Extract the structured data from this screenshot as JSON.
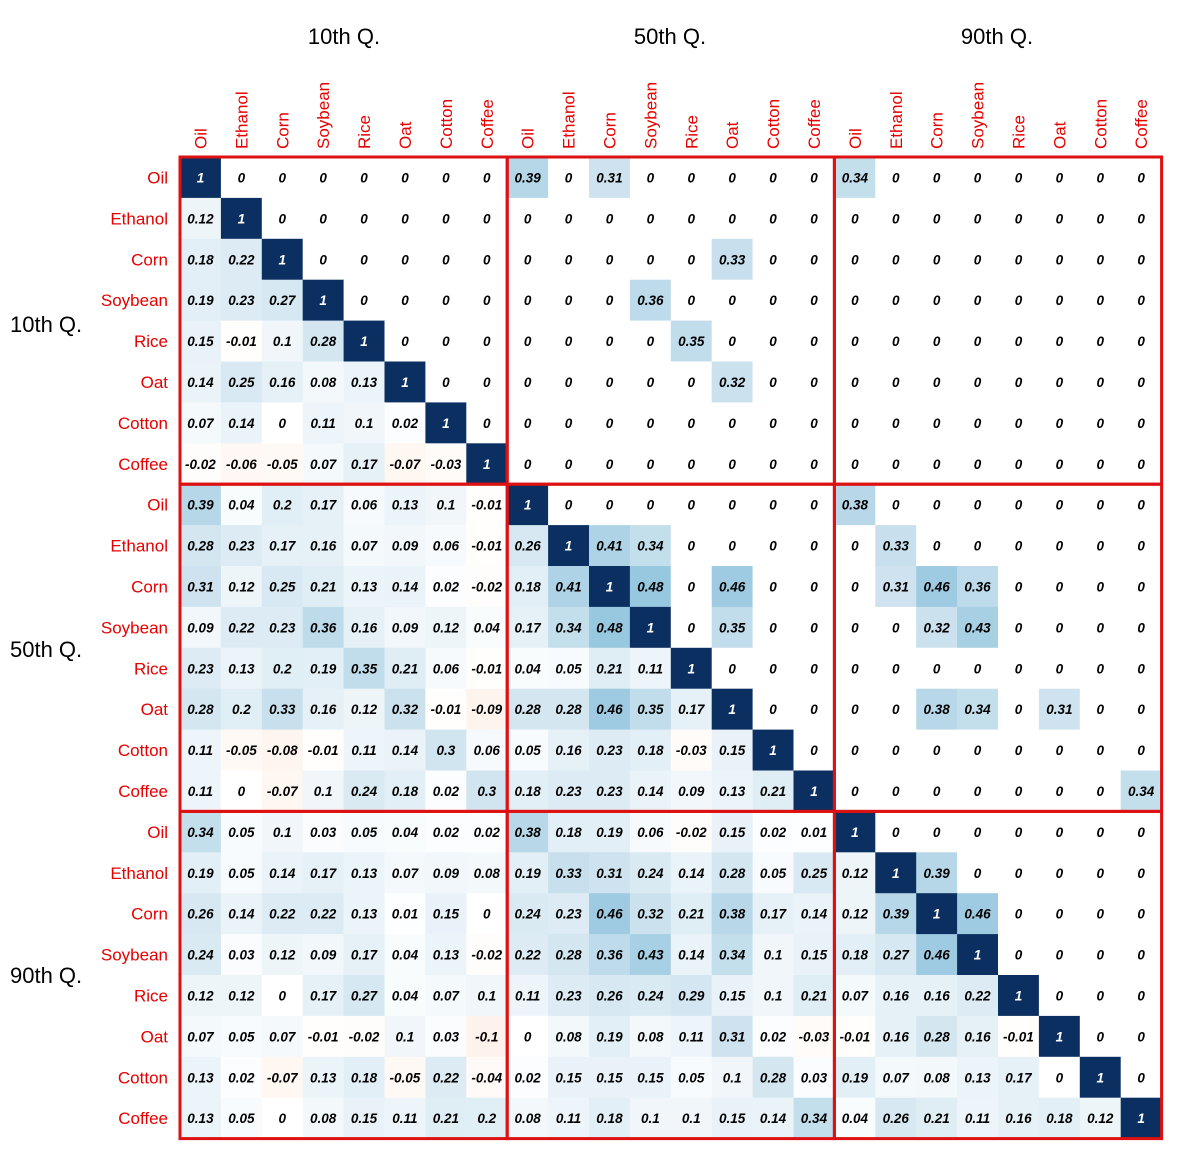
{
  "chart_data": {
    "type": "heatmap",
    "group_labels": [
      "10th Q.",
      "50th Q.",
      "90th Q."
    ],
    "variables": [
      "Oil",
      "Ethanol",
      "Corn",
      "Soybean",
      "Rice",
      "Oat",
      "Cotton",
      "Coffee"
    ],
    "column_labels": [
      "Oil",
      "Ethanol",
      "Corn",
      "Soybean",
      "Rice",
      "Oat",
      "Cotton",
      "Coffee",
      "Oil",
      "Ethanol",
      "Corn",
      "Soybean",
      "Rice",
      "Oat",
      "Cotton",
      "Coffee",
      "Oil",
      "Ethanol",
      "Corn",
      "Soybean",
      "Rice",
      "Oat",
      "Cotton",
      "Coffee"
    ],
    "row_labels": [
      "Oil",
      "Ethanol",
      "Corn",
      "Soybean",
      "Rice",
      "Oat",
      "Cotton",
      "Coffee",
      "Oil",
      "Ethanol",
      "Corn",
      "Soybean",
      "Rice",
      "Oat",
      "Cotton",
      "Coffee",
      "Oil",
      "Ethanol",
      "Corn",
      "Soybean",
      "Rice",
      "Oat",
      "Cotton",
      "Coffee"
    ],
    "value_range": [
      -1,
      1
    ],
    "colors": {
      "positive_max": "#0b2f61",
      "neutral": "#ffffff",
      "negative_max": "#b2182b",
      "tick_label": "#e60000",
      "block_border": "#dd1111"
    },
    "matrix": [
      [
        1,
        0,
        0,
        0,
        0,
        0,
        0,
        0,
        0.39,
        0,
        0.31,
        0,
        0,
        0,
        0,
        0,
        0.34,
        0,
        0,
        0,
        0,
        0,
        0,
        0
      ],
      [
        0.12,
        1,
        0,
        0,
        0,
        0,
        0,
        0,
        0,
        0,
        0,
        0,
        0,
        0,
        0,
        0,
        0,
        0,
        0,
        0,
        0,
        0,
        0,
        0
      ],
      [
        0.18,
        0.22,
        1,
        0,
        0,
        0,
        0,
        0,
        0,
        0,
        0,
        0,
        0,
        0.33,
        0,
        0,
        0,
        0,
        0,
        0,
        0,
        0,
        0,
        0
      ],
      [
        0.19,
        0.23,
        0.27,
        1,
        0,
        0,
        0,
        0,
        0,
        0,
        0,
        0.36,
        0,
        0,
        0,
        0,
        0,
        0,
        0,
        0,
        0,
        0,
        0,
        0
      ],
      [
        0.15,
        -0.01,
        0.1,
        0.28,
        1,
        0,
        0,
        0,
        0,
        0,
        0,
        0,
        0.35,
        0,
        0,
        0,
        0,
        0,
        0,
        0,
        0,
        0,
        0,
        0
      ],
      [
        0.14,
        0.25,
        0.16,
        0.08,
        0.13,
        1,
        0,
        0,
        0,
        0,
        0,
        0,
        0,
        0.32,
        0,
        0,
        0,
        0,
        0,
        0,
        0,
        0,
        0,
        0
      ],
      [
        0.07,
        0.14,
        0,
        0.11,
        0.1,
        0.02,
        1,
        0,
        0,
        0,
        0,
        0,
        0,
        0,
        0,
        0,
        0,
        0,
        0,
        0,
        0,
        0,
        0,
        0
      ],
      [
        -0.02,
        -0.06,
        -0.05,
        0.07,
        0.17,
        -0.07,
        -0.03,
        1,
        0,
        0,
        0,
        0,
        0,
        0,
        0,
        0,
        0,
        0,
        0,
        0,
        0,
        0,
        0,
        0
      ],
      [
        0.39,
        0.04,
        0.2,
        0.17,
        0.06,
        0.13,
        0.1,
        -0.01,
        1,
        0,
        0,
        0,
        0,
        0,
        0,
        0,
        0.38,
        0,
        0,
        0,
        0,
        0,
        0,
        0
      ],
      [
        0.28,
        0.23,
        0.17,
        0.16,
        0.07,
        0.09,
        0.06,
        -0.01,
        0.26,
        1,
        0.41,
        0.34,
        0,
        0,
        0,
        0,
        0,
        0.33,
        0,
        0,
        0,
        0,
        0,
        0
      ],
      [
        0.31,
        0.12,
        0.25,
        0.21,
        0.13,
        0.14,
        0.02,
        -0.02,
        0.18,
        0.41,
        1,
        0.48,
        0,
        0.46,
        0,
        0,
        0,
        0.31,
        0.46,
        0.36,
        0,
        0,
        0,
        0
      ],
      [
        0.09,
        0.22,
        0.23,
        0.36,
        0.16,
        0.09,
        0.12,
        0.04,
        0.17,
        0.34,
        0.48,
        1,
        0,
        0.35,
        0,
        0,
        0,
        0,
        0.32,
        0.43,
        0,
        0,
        0,
        0
      ],
      [
        0.23,
        0.13,
        0.2,
        0.19,
        0.35,
        0.21,
        0.06,
        -0.01,
        0.04,
        0.05,
        0.21,
        0.11,
        1,
        0,
        0,
        0,
        0,
        0,
        0,
        0,
        0,
        0,
        0,
        0
      ],
      [
        0.28,
        0.2,
        0.33,
        0.16,
        0.12,
        0.32,
        -0.01,
        -0.09,
        0.28,
        0.28,
        0.46,
        0.35,
        0.17,
        1,
        0,
        0,
        0,
        0,
        0.38,
        0.34,
        0,
        0.31,
        0,
        0
      ],
      [
        0.11,
        -0.05,
        -0.08,
        -0.01,
        0.11,
        0.14,
        0.3,
        0.06,
        0.05,
        0.16,
        0.23,
        0.18,
        -0.03,
        0.15,
        1,
        0,
        0,
        0,
        0,
        0,
        0,
        0,
        0,
        0
      ],
      [
        0.11,
        0,
        -0.07,
        0.1,
        0.24,
        0.18,
        0.02,
        0.3,
        0.18,
        0.23,
        0.23,
        0.14,
        0.09,
        0.13,
        0.21,
        1,
        0,
        0,
        0,
        0,
        0,
        0,
        0,
        0.34
      ],
      [
        0.34,
        0.05,
        0.1,
        0.03,
        0.05,
        0.04,
        0.02,
        0.02,
        0.38,
        0.18,
        0.19,
        0.06,
        -0.02,
        0.15,
        0.02,
        0.01,
        1,
        0,
        0,
        0,
        0,
        0,
        0,
        0
      ],
      [
        0.19,
        0.05,
        0.14,
        0.17,
        0.13,
        0.07,
        0.09,
        0.08,
        0.19,
        0.33,
        0.31,
        0.24,
        0.14,
        0.28,
        0.05,
        0.25,
        0.12,
        1,
        0.39,
        0,
        0,
        0,
        0,
        0
      ],
      [
        0.26,
        0.14,
        0.22,
        0.22,
        0.13,
        0.01,
        0.15,
        0,
        0.24,
        0.23,
        0.46,
        0.32,
        0.21,
        0.38,
        0.17,
        0.14,
        0.12,
        0.39,
        1,
        0.46,
        0,
        0,
        0,
        0
      ],
      [
        0.24,
        0.03,
        0.12,
        0.09,
        0.17,
        0.04,
        0.13,
        -0.02,
        0.22,
        0.28,
        0.36,
        0.43,
        0.14,
        0.34,
        0.1,
        0.15,
        0.18,
        0.27,
        0.46,
        1,
        0,
        0,
        0,
        0
      ],
      [
        0.12,
        0.12,
        0,
        0.17,
        0.27,
        0.04,
        0.07,
        0.1,
        0.11,
        0.23,
        0.26,
        0.24,
        0.29,
        0.15,
        0.1,
        0.21,
        0.07,
        0.16,
        0.16,
        0.22,
        1,
        0,
        0,
        0
      ],
      [
        0.07,
        0.05,
        0.07,
        -0.01,
        -0.02,
        0.1,
        0.03,
        -0.1,
        0,
        0.08,
        0.19,
        0.08,
        0.11,
        0.31,
        0.02,
        -0.03,
        -0.01,
        0.16,
        0.28,
        0.16,
        -0.01,
        1,
        0,
        0
      ],
      [
        0.13,
        0.02,
        -0.07,
        0.13,
        0.18,
        -0.05,
        0.22,
        -0.04,
        0.02,
        0.15,
        0.15,
        0.15,
        0.05,
        0.1,
        0.28,
        0.03,
        0.19,
        0.07,
        0.08,
        0.13,
        0.17,
        0,
        1,
        0
      ],
      [
        0.13,
        0.05,
        0,
        0.08,
        0.15,
        0.11,
        0.21,
        0.2,
        0.08,
        0.11,
        0.18,
        0.1,
        0.1,
        0.15,
        0.14,
        0.34,
        0.04,
        0.26,
        0.21,
        0.11,
        0.16,
        0.18,
        0.12,
        1
      ]
    ]
  }
}
